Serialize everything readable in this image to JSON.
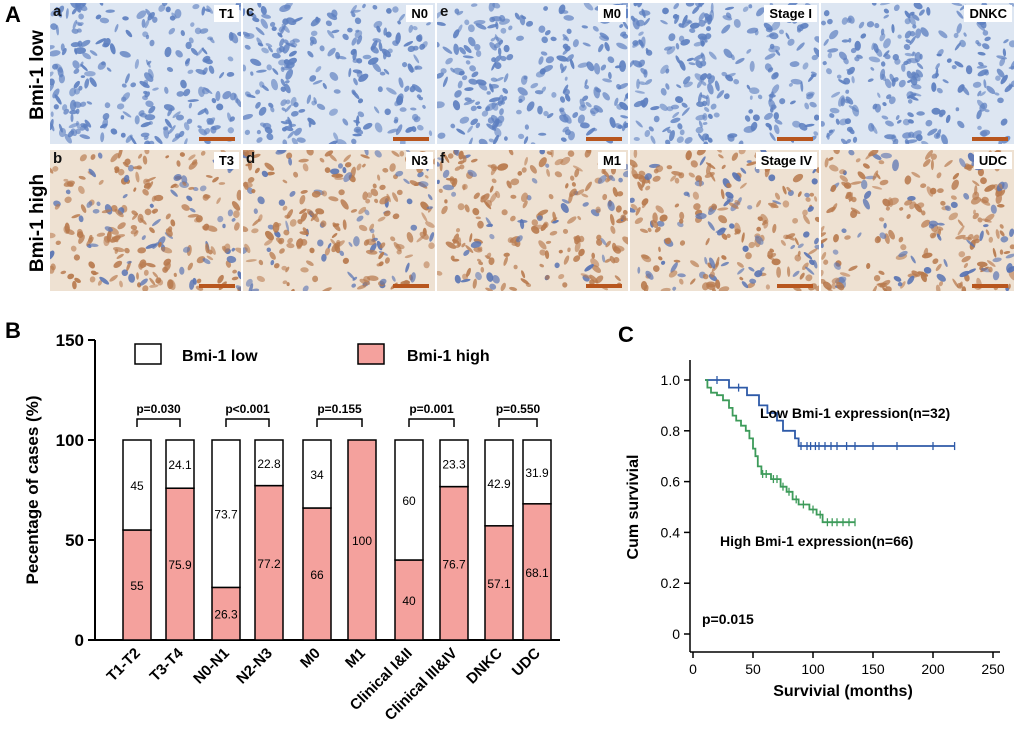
{
  "panel_labels": {
    "A": "A",
    "B": "B",
    "C": "C"
  },
  "micrographs": {
    "row_labels": [
      "Bmi-1 low",
      "Bmi-1 high"
    ],
    "row_colors": [
      "#5d7fc0",
      "#b87a4e"
    ],
    "top": [
      {
        "sub": "a",
        "label": "T1"
      },
      {
        "sub": "c",
        "label": "N0"
      },
      {
        "sub": "e",
        "label": "M0"
      },
      {
        "sub": "",
        "label": "Stage I"
      },
      {
        "sub": "",
        "label": "DNKC"
      }
    ],
    "bottom": [
      {
        "sub": "b",
        "label": "T3"
      },
      {
        "sub": "d",
        "label": "N3"
      },
      {
        "sub": "f",
        "label": "M1"
      },
      {
        "sub": "",
        "label": "Stage IV"
      },
      {
        "sub": "",
        "label": "UDC"
      }
    ]
  },
  "chart_data": [
    {
      "type": "bar",
      "stacked": true,
      "ylabel": "Pecentage of cases (%)",
      "ylim": [
        0,
        150
      ],
      "yticks": [
        0,
        50,
        100,
        150
      ],
      "categories": [
        "T1-T2",
        "T3-T4",
        "N0-N1",
        "N2-N3",
        "M0",
        "M1",
        "Clinical I&II",
        "Clinical III&IV",
        "DNKC",
        "UDC"
      ],
      "series": [
        {
          "name": "Bmi-1 high",
          "color": "#f4a19d",
          "values": [
            55,
            75.9,
            26.3,
            77.2,
            66,
            100,
            40,
            76.7,
            57.1,
            68.1
          ],
          "labels": [
            "55",
            "75.9",
            "26.3",
            "77.2",
            "66",
            "100",
            "40",
            "76.7",
            "57.1",
            "68.1"
          ]
        },
        {
          "name": "Bmi-1 low",
          "color": "#ffffff",
          "values": [
            45,
            24.1,
            73.7,
            22.8,
            34,
            0,
            60,
            23.3,
            42.9,
            31.9
          ],
          "labels": [
            "45",
            "24.1",
            "73.7",
            "22.8",
            "34",
            "",
            "60",
            "23.3",
            "42.9",
            "31.9"
          ]
        }
      ],
      "legend": [
        "Bmi-1 low",
        "Bmi-1 high"
      ],
      "pvalues": [
        "p=0.030",
        "p<0.001",
        "p=0.155",
        "p=0.001",
        "p=0.550"
      ]
    },
    {
      "type": "line",
      "subtype": "kaplan-meier",
      "xlabel": "Survivial (months)",
      "ylabel": "Cum survivial",
      "xlim": [
        0,
        250
      ],
      "ylim": [
        0,
        1.0
      ],
      "xticks": [
        0,
        50,
        100,
        150,
        200,
        250
      ],
      "yticks": [
        "0",
        "0.2",
        "0.4",
        "0.6",
        "0.8",
        "1.0"
      ],
      "annotation": "p=0.015",
      "series": [
        {
          "name": "Low Bmi-1 expression(n=32)",
          "color": "#2e5aa8",
          "steps": [
            [
              10,
              1.0
            ],
            [
              30,
              0.97
            ],
            [
              45,
              0.94
            ],
            [
              55,
              0.9
            ],
            [
              62,
              0.87
            ],
            [
              70,
              0.84
            ],
            [
              75,
              0.8
            ],
            [
              85,
              0.77
            ],
            [
              88,
              0.74
            ],
            [
              218,
              0.74
            ]
          ],
          "censored": [
            [
              20,
              1.0
            ],
            [
              38,
              0.97
            ],
            [
              90,
              0.74
            ],
            [
              95,
              0.74
            ],
            [
              98,
              0.74
            ],
            [
              102,
              0.74
            ],
            [
              105,
              0.74
            ],
            [
              110,
              0.74
            ],
            [
              115,
              0.74
            ],
            [
              120,
              0.74
            ],
            [
              128,
              0.74
            ],
            [
              135,
              0.74
            ],
            [
              150,
              0.74
            ],
            [
              170,
              0.74
            ],
            [
              200,
              0.74
            ],
            [
              218,
              0.74
            ]
          ]
        },
        {
          "name": "High Bmi-1 expression(n=66)",
          "color": "#3d9b5a",
          "steps": [
            [
              10,
              1.0
            ],
            [
              12,
              0.97
            ],
            [
              15,
              0.95
            ],
            [
              20,
              0.94
            ],
            [
              25,
              0.92
            ],
            [
              30,
              0.89
            ],
            [
              33,
              0.86
            ],
            [
              36,
              0.84
            ],
            [
              40,
              0.82
            ],
            [
              44,
              0.8
            ],
            [
              47,
              0.77
            ],
            [
              50,
              0.73
            ],
            [
              52,
              0.7
            ],
            [
              54,
              0.66
            ],
            [
              57,
              0.63
            ],
            [
              65,
              0.61
            ],
            [
              73,
              0.58
            ],
            [
              78,
              0.56
            ],
            [
              83,
              0.53
            ],
            [
              88,
              0.51
            ],
            [
              97,
              0.49
            ],
            [
              103,
              0.47
            ],
            [
              108,
              0.44
            ],
            [
              135,
              0.44
            ]
          ],
          "censored": [
            [
              58,
              0.63
            ],
            [
              61,
              0.63
            ],
            [
              67,
              0.61
            ],
            [
              70,
              0.61
            ],
            [
              75,
              0.58
            ],
            [
              80,
              0.56
            ],
            [
              86,
              0.53
            ],
            [
              92,
              0.51
            ],
            [
              100,
              0.49
            ],
            [
              106,
              0.47
            ],
            [
              112,
              0.44
            ],
            [
              116,
              0.44
            ],
            [
              120,
              0.44
            ],
            [
              125,
              0.44
            ],
            [
              130,
              0.44
            ],
            [
              135,
              0.44
            ]
          ]
        }
      ]
    }
  ]
}
